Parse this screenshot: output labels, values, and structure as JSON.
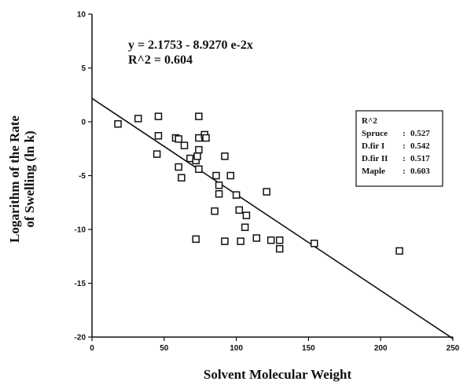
{
  "chart_data": {
    "type": "scatter",
    "xlabel": "Solvent Molecular Weight",
    "ylabel_line1": "Logarithm of the Rate",
    "ylabel_line2": "of Swelling  (ln k)",
    "xlim": [
      0,
      250
    ],
    "ylim": [
      -20,
      10
    ],
    "xticks": [
      0,
      50,
      100,
      150,
      200,
      250
    ],
    "yticks": [
      10,
      5,
      0,
      -5,
      -10,
      -15,
      -20
    ],
    "grid": false,
    "equation": "y = 2.1753 - 8.9270 e-2x",
    "r_squared_text": "R^2 = 0.604",
    "fit_line": {
      "intercept": 2.1753,
      "slope": -0.08927,
      "x_range": [
        0,
        250
      ]
    },
    "legend_box": {
      "title": "R^2",
      "entries": [
        {
          "label": "Spruce",
          "sep": ":",
          "value": "0.527"
        },
        {
          "label": "D.fir  I",
          "sep": ":",
          "value": "0.542"
        },
        {
          "label": "D.fir  II",
          "sep": ":",
          "value": "0.517"
        },
        {
          "label": "Maple",
          "sep": ":",
          "value": "0.603"
        }
      ]
    },
    "points": [
      {
        "x": 18,
        "y": -0.2
      },
      {
        "x": 32,
        "y": 0.3
      },
      {
        "x": 46,
        "y": 0.5
      },
      {
        "x": 46,
        "y": -1.3
      },
      {
        "x": 45,
        "y": -3.0
      },
      {
        "x": 58,
        "y": -1.5
      },
      {
        "x": 60,
        "y": -1.6
      },
      {
        "x": 64,
        "y": -2.2
      },
      {
        "x": 60,
        "y": -4.2
      },
      {
        "x": 62,
        "y": -5.2
      },
      {
        "x": 68,
        "y": -3.4
      },
      {
        "x": 72,
        "y": -3.6
      },
      {
        "x": 74,
        "y": -2.6
      },
      {
        "x": 73,
        "y": -3.2
      },
      {
        "x": 74,
        "y": 0.5
      },
      {
        "x": 74,
        "y": -1.5
      },
      {
        "x": 78,
        "y": -1.2
      },
      {
        "x": 79,
        "y": -1.5
      },
      {
        "x": 74,
        "y": -4.4
      },
      {
        "x": 72,
        "y": -10.9
      },
      {
        "x": 86,
        "y": -5.0
      },
      {
        "x": 88,
        "y": -5.9
      },
      {
        "x": 88,
        "y": -6.7
      },
      {
        "x": 85,
        "y": -8.3
      },
      {
        "x": 92,
        "y": -3.2
      },
      {
        "x": 96,
        "y": -5.0
      },
      {
        "x": 100,
        "y": -6.8
      },
      {
        "x": 102,
        "y": -8.2
      },
      {
        "x": 107,
        "y": -8.7
      },
      {
        "x": 106,
        "y": -9.8
      },
      {
        "x": 92,
        "y": -11.1
      },
      {
        "x": 103,
        "y": -11.1
      },
      {
        "x": 114,
        "y": -10.8
      },
      {
        "x": 121,
        "y": -6.5
      },
      {
        "x": 124,
        "y": -11.0
      },
      {
        "x": 130,
        "y": -11.0
      },
      {
        "x": 130,
        "y": -11.8
      },
      {
        "x": 154,
        "y": -11.3
      },
      {
        "x": 213,
        "y": -12.0
      }
    ]
  }
}
